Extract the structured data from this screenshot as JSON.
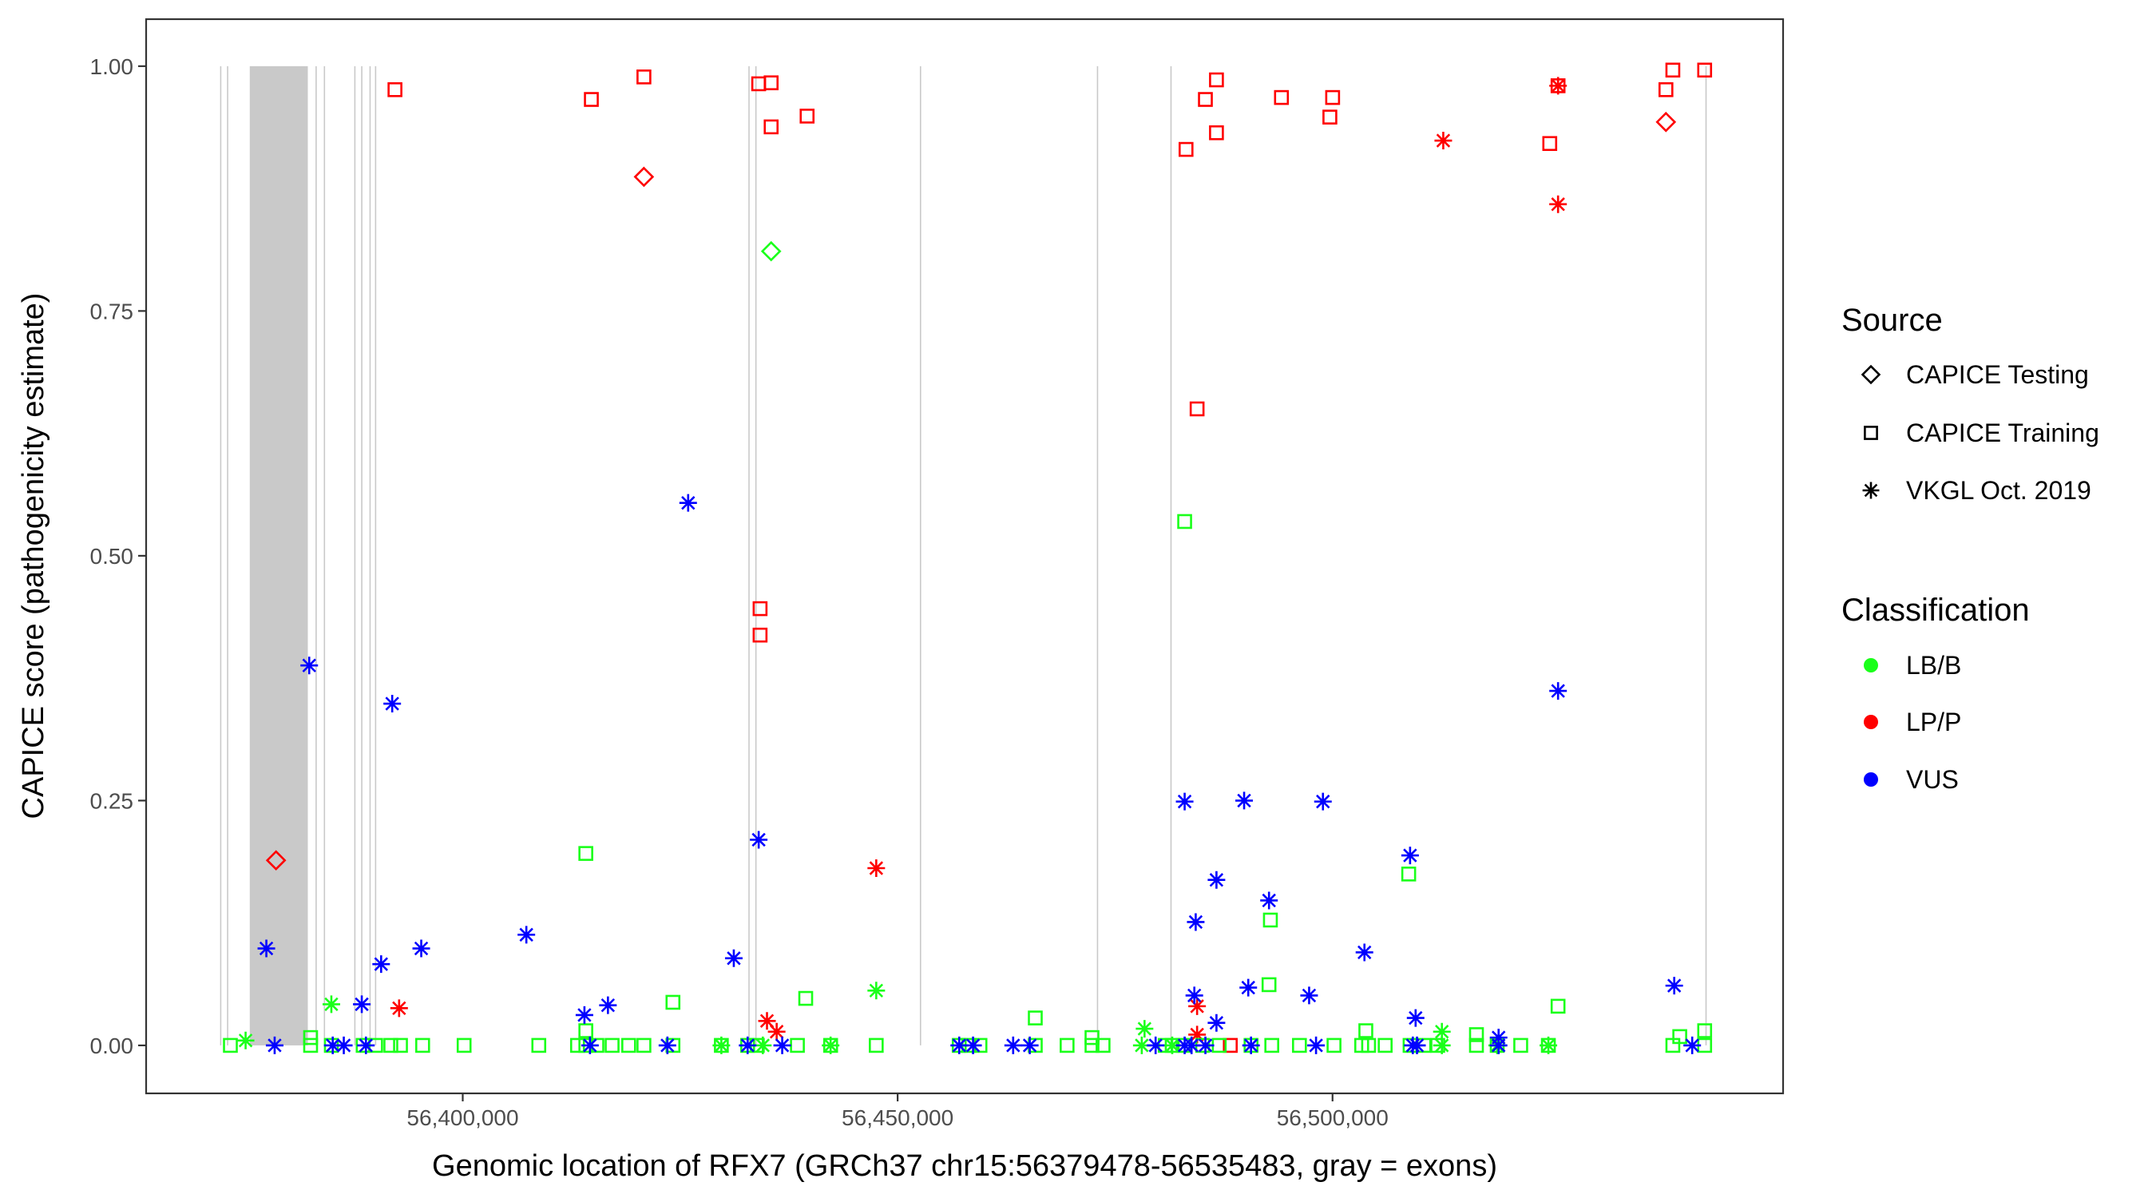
{
  "chart_data": {
    "type": "scatter",
    "xlabel": "Genomic location of RFX7 (GRCh37 chr15:56379478-56535483, gray = exons)",
    "ylabel": "CAPICE score (pathogenicity estimate)",
    "xlim": [
      56363600,
      56551800
    ],
    "ylim": [
      -0.049,
      1.048
    ],
    "x_ticks": [
      {
        "value": 56400000,
        "label": "56,400,000"
      },
      {
        "value": 56450000,
        "label": "56,450,000"
      },
      {
        "value": 56500000,
        "label": "56,500,000"
      }
    ],
    "y_ticks": [
      {
        "value": 0,
        "label": "0.00"
      },
      {
        "value": 0.25,
        "label": "0.25"
      },
      {
        "value": 0.5,
        "label": "0.50"
      },
      {
        "value": 0.75,
        "label": "0.75"
      },
      {
        "value": 1,
        "label": "1.00"
      }
    ],
    "grid": false,
    "exon_lines": [
      56372175,
      56372970,
      56383146,
      56384100,
      56387598,
      56388393,
      56389347,
      56389983,
      56432913,
      56433708,
      56452629,
      56472981,
      56481429,
      56542941
    ],
    "exon_bands": [
      [
        56375514,
        56382192
      ]
    ],
    "colors": {
      "LB/B": "#1aff1a",
      "LP/P": "#ff0000",
      "VUS": "#0000ff",
      "exon": "#c9c9c9"
    },
    "legend": {
      "placement": "right",
      "source_title": "Source",
      "source_items": [
        {
          "label": "CAPICE Testing",
          "shape": "diamond"
        },
        {
          "label": "CAPICE Training",
          "shape": "square"
        },
        {
          "label": "VKGL Oct. 2019",
          "shape": "asterisk"
        }
      ],
      "class_title": "Classification",
      "class_items": [
        {
          "label": "LB/B"
        },
        {
          "label": "LP/P"
        },
        {
          "label": "VUS"
        }
      ]
    },
    "series": [
      {
        "classification": "LP/P",
        "source": "CAPICE Training",
        "shape": "square",
        "points": [
          [
            56392209,
            0.976
          ],
          [
            56414787,
            0.966
          ],
          [
            56420829,
            0.989
          ],
          [
            56434026,
            0.982
          ],
          [
            56435457,
            0.983
          ],
          [
            56435457,
            0.938
          ],
          [
            56439591,
            0.949
          ],
          [
            56434185,
            0.446
          ],
          [
            56434185,
            0.419
          ],
          [
            56483157,
            0.915
          ],
          [
            56485383,
            0.966
          ],
          [
            56486655,
            0.986
          ],
          [
            56486655,
            0.932
          ],
          [
            56494128,
            0.968
          ],
          [
            56500011,
            0.968
          ],
          [
            56499693,
            0.948
          ],
          [
            56484429,
            0.65
          ],
          [
            56524974,
            0.921
          ],
          [
            56525928,
            0.98
          ],
          [
            56538330,
            0.976
          ],
          [
            56539125,
            0.996
          ],
          [
            56542782,
            0.996
          ],
          [
            56488245,
            0.0
          ]
        ]
      },
      {
        "classification": "LP/P",
        "source": "CAPICE Testing",
        "shape": "diamond",
        "points": [
          [
            56420829,
            0.887
          ],
          [
            56378535,
            0.189
          ],
          [
            56538330,
            0.943
          ]
        ]
      },
      {
        "classification": "LP/P",
        "source": "VKGL Oct. 2019",
        "shape": "asterisk",
        "points": [
          [
            56392686,
            0.038
          ],
          [
            56434980,
            0.025
          ],
          [
            56436093,
            0.014
          ],
          [
            56447541,
            0.181
          ],
          [
            56484429,
            0.04
          ],
          [
            56484429,
            0.011
          ],
          [
            56512731,
            0.924
          ],
          [
            56525928,
            0.859
          ],
          [
            56525928,
            0.98
          ]
        ]
      },
      {
        "classification": "LB/B",
        "source": "CAPICE Testing",
        "shape": "diamond",
        "points": [
          [
            56435457,
            0.811
          ]
        ]
      },
      {
        "classification": "LB/B",
        "source": "CAPICE Training",
        "shape": "square",
        "points": [
          [
            56414151,
            0.196
          ],
          [
            56482998,
            0.535
          ],
          [
            56508756,
            0.175
          ],
          [
            56492856,
            0.128
          ],
          [
            56492697,
            0.062
          ],
          [
            56465826,
            0.028
          ],
          [
            56439432,
            0.048
          ],
          [
            56424168,
            0.044
          ],
          [
            56525928,
            0.04
          ],
          [
            56503827,
            0.015
          ],
          [
            56542782,
            0.015
          ],
          [
            56382510,
            0.008
          ],
          [
            56414151,
            0.015
          ],
          [
            56472345,
            0.008
          ],
          [
            56516547,
            0.011
          ],
          [
            56539920,
            0.009
          ],
          [
            56373288,
            0
          ],
          [
            56382510,
            0
          ],
          [
            56384895,
            0
          ],
          [
            56388552,
            0
          ],
          [
            56389983,
            0
          ],
          [
            56391732,
            0
          ],
          [
            56392845,
            0
          ],
          [
            56395389,
            0
          ],
          [
            56400159,
            0
          ],
          [
            56408745,
            0
          ],
          [
            56413197,
            0
          ],
          [
            56414151,
            0
          ],
          [
            56415423,
            0
          ],
          [
            56417172,
            0
          ],
          [
            56419080,
            0
          ],
          [
            56420829,
            0
          ],
          [
            56424168,
            0
          ],
          [
            56429733,
            0
          ],
          [
            56432754,
            0
          ],
          [
            56433867,
            0
          ],
          [
            56438478,
            0
          ],
          [
            56442294,
            0
          ],
          [
            56447541,
            0
          ],
          [
            56457081,
            0
          ],
          [
            56458194,
            0
          ],
          [
            56459466,
            0
          ],
          [
            56465826,
            0
          ],
          [
            56469483,
            0
          ],
          [
            56472345,
            0
          ],
          [
            56473617,
            0
          ],
          [
            56480772,
            0
          ],
          [
            56481567,
            0
          ],
          [
            56482839,
            0
          ],
          [
            56485065,
            0
          ],
          [
            56486973,
            0
          ],
          [
            56490630,
            0
          ],
          [
            56493015,
            0
          ],
          [
            56496195,
            0
          ],
          [
            56500170,
            0
          ],
          [
            56503350,
            0
          ],
          [
            56504145,
            0
          ],
          [
            56506053,
            0
          ],
          [
            56508915,
            0
          ],
          [
            56510505,
            0
          ],
          [
            56512095,
            0
          ],
          [
            56516547,
            0
          ],
          [
            56518932,
            0
          ],
          [
            56521635,
            0
          ],
          [
            56524815,
            0
          ],
          [
            56539125,
            0
          ],
          [
            56542782,
            0
          ]
        ]
      },
      {
        "classification": "LB/B",
        "source": "VKGL Oct. 2019",
        "shape": "asterisk",
        "points": [
          [
            56384895,
            0.042
          ],
          [
            56447541,
            0.056
          ],
          [
            56478387,
            0.017
          ],
          [
            56512572,
            0.014
          ],
          [
            56375037,
            0.005
          ],
          [
            56429733,
            0
          ],
          [
            56434503,
            0
          ],
          [
            56442294,
            0
          ],
          [
            56478069,
            0
          ],
          [
            56481567,
            0
          ],
          [
            56518932,
            0
          ],
          [
            56524815,
            0
          ],
          [
            56512572,
            0
          ]
        ]
      },
      {
        "classification": "VUS",
        "source": "VKGL Oct. 2019",
        "shape": "asterisk",
        "points": [
          [
            56382351,
            0.388
          ],
          [
            56391891,
            0.349
          ],
          [
            56377422,
            0.099
          ],
          [
            56390619,
            0.083
          ],
          [
            56395230,
            0.099
          ],
          [
            56388393,
            0.042
          ],
          [
            56407314,
            0.113
          ],
          [
            56413992,
            0.031
          ],
          [
            56416695,
            0.041
          ],
          [
            56425917,
            0.554
          ],
          [
            56431164,
            0.089
          ],
          [
            56434026,
            0.21
          ],
          [
            56482998,
            0.249
          ],
          [
            56489835,
            0.25
          ],
          [
            56498898,
            0.249
          ],
          [
            56486655,
            0.169
          ],
          [
            56484270,
            0.126
          ],
          [
            56492697,
            0.148
          ],
          [
            56490312,
            0.059
          ],
          [
            56497308,
            0.051
          ],
          [
            56484111,
            0.051
          ],
          [
            56503668,
            0.095
          ],
          [
            56508915,
            0.194
          ],
          [
            56509551,
            0.028
          ],
          [
            56525928,
            0.362
          ],
          [
            56539284,
            0.061
          ],
          [
            56486655,
            0.023
          ],
          [
            56519091,
            0.008
          ],
          [
            56378376,
            0
          ],
          [
            56385054,
            0
          ],
          [
            56386326,
            0
          ],
          [
            56388870,
            0
          ],
          [
            56414628,
            0
          ],
          [
            56423532,
            0
          ],
          [
            56432754,
            0
          ],
          [
            56436729,
            0
          ],
          [
            56457081,
            0
          ],
          [
            56458671,
            0
          ],
          [
            56463282,
            0
          ],
          [
            56465190,
            0
          ],
          [
            56479659,
            0
          ],
          [
            56482998,
            0
          ],
          [
            56483793,
            0
          ],
          [
            56485383,
            0
          ],
          [
            56490630,
            0
          ],
          [
            56498103,
            0
          ],
          [
            56509233,
            0
          ],
          [
            56509710,
            0
          ],
          [
            56519091,
            0
          ],
          [
            56541351,
            0
          ]
        ]
      }
    ]
  }
}
